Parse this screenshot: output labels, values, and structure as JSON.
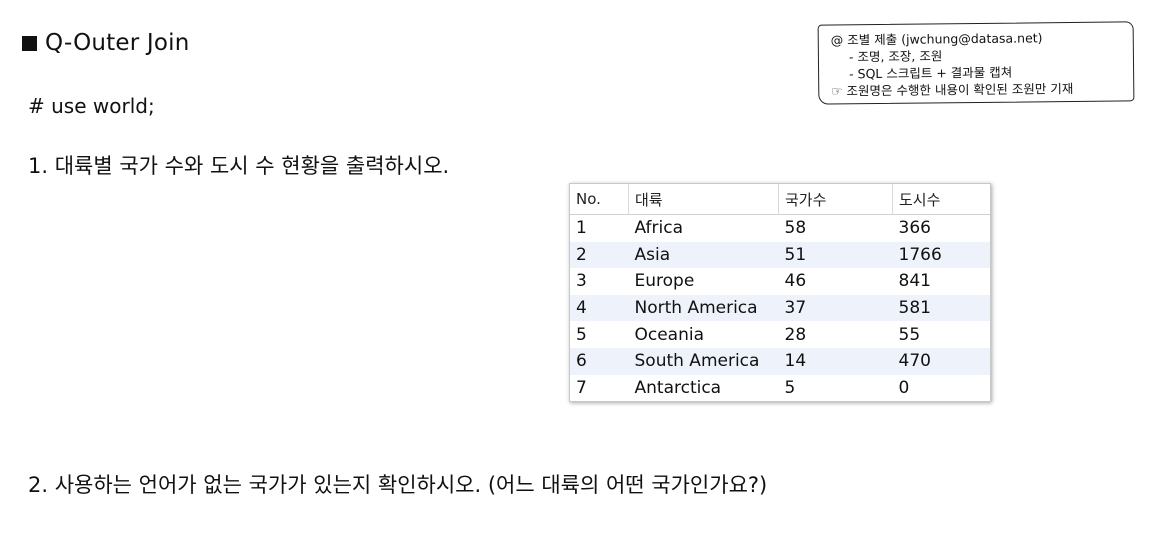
{
  "title": "Q-Outer Join",
  "use_line": "# use world;",
  "note": {
    "line1": "@ 조별 제출 (jwchung@datasa.net)",
    "line2": "- 조명, 조장, 조원",
    "line3": "- SQL 스크립트 + 결과물 캡쳐",
    "line4": "☞ 조원명은 수행한 내용이 확인된 조원만 기재"
  },
  "question1": "1. 대륙별 국가 수와 도시 수 현황을 출력하시오.",
  "question2": "2. 사용하는 언어가 없는 국가가 있는지 확인하시오. (어느 대륙의 어떤 국가인가요?)",
  "table": {
    "headers": [
      "No.",
      "대륙",
      "국가수",
      "도시수"
    ],
    "rows": [
      [
        "1",
        "Africa",
        "58",
        "366"
      ],
      [
        "2",
        "Asia",
        "51",
        "1766"
      ],
      [
        "3",
        "Europe",
        "46",
        "841"
      ],
      [
        "4",
        "North America",
        "37",
        "581"
      ],
      [
        "5",
        "Oceania",
        "28",
        "55"
      ],
      [
        "6",
        "South America",
        "14",
        "470"
      ],
      [
        "7",
        "Antarctica",
        "5",
        "0"
      ]
    ]
  }
}
